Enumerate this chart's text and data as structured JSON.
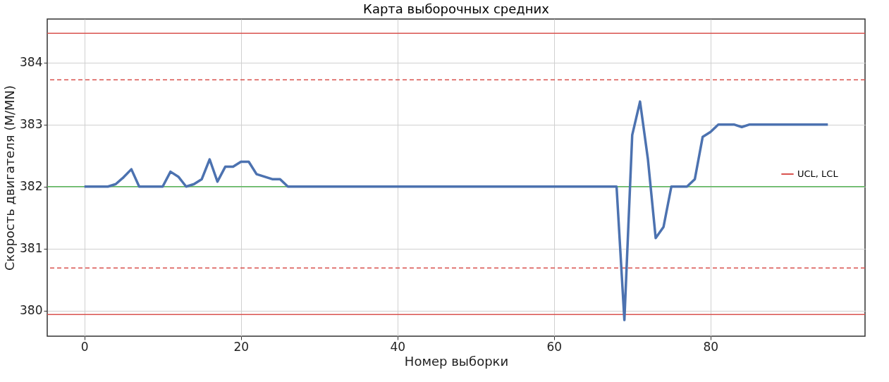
{
  "chart_data": {
    "type": "line",
    "title": "Карта выборочных средних",
    "xlabel": "Номер выборки",
    "ylabel": "Скорость двигателя (M/MN)",
    "x": [
      0,
      1,
      2,
      3,
      4,
      5,
      6,
      7,
      8,
      9,
      10,
      11,
      12,
      13,
      14,
      15,
      16,
      17,
      18,
      19,
      20,
      21,
      22,
      23,
      24,
      25,
      26,
      27,
      28,
      29,
      30,
      31,
      32,
      33,
      34,
      35,
      36,
      37,
      38,
      39,
      40,
      41,
      42,
      43,
      44,
      45,
      46,
      47,
      48,
      49,
      50,
      51,
      52,
      53,
      54,
      55,
      56,
      57,
      58,
      59,
      60,
      61,
      62,
      63,
      64,
      65,
      66,
      67,
      68,
      69,
      70,
      71,
      72,
      73,
      74,
      75,
      76,
      77,
      78,
      79,
      80,
      81,
      82,
      83,
      84,
      85,
      86,
      87,
      88,
      89,
      90,
      91,
      92,
      93,
      94,
      95
    ],
    "series": [
      {
        "color": "#4c72b0",
        "values": [
          382,
          382,
          382,
          382,
          382.04,
          382.15,
          382.28,
          382,
          382,
          382,
          382,
          382.24,
          382.16,
          382,
          382.04,
          382.12,
          382.44,
          382.08,
          382.32,
          382.32,
          382.4,
          382.4,
          382.2,
          382.16,
          382.12,
          382.12,
          382,
          382,
          382,
          382,
          382,
          382,
          382,
          382,
          382,
          382,
          382,
          382,
          382,
          382,
          382,
          382,
          382,
          382,
          382,
          382,
          382,
          382,
          382,
          382,
          382,
          382,
          382,
          382,
          382,
          382,
          382,
          382,
          382,
          382,
          382,
          382,
          382,
          382,
          382,
          382,
          382,
          382,
          382,
          379.85,
          382.83,
          383.37,
          382.45,
          381.17,
          381.35,
          382,
          382,
          382,
          382.12,
          382.8,
          382.88,
          383,
          383,
          383,
          382.96,
          383,
          383,
          383,
          383,
          383,
          383,
          383,
          383,
          383,
          383,
          383
        ]
      }
    ],
    "ref_lines": [
      {
        "axis": "y",
        "value": 384.47,
        "label": "UCL, LCL",
        "color": "#d9534f",
        "line_style": "solid"
      },
      {
        "axis": "y",
        "value": 383.72,
        "color": "#d9534f",
        "line_style": "dashed"
      },
      {
        "axis": "y",
        "value": 382,
        "color": "#5cb85c",
        "line_style": "solid"
      },
      {
        "axis": "y",
        "value": 380.69,
        "color": "#d9534f",
        "line_style": "dashed"
      },
      {
        "axis": "y",
        "value": 379.94,
        "color": "#d9534f",
        "line_style": "solid"
      }
    ],
    "xlim": [
      -4.75,
      99.75
    ],
    "xticks": [
      0,
      20,
      40,
      60,
      80
    ],
    "ylim": [
      379.59,
      384.7
    ],
    "yticks": [
      380,
      381,
      382,
      383,
      384
    ],
    "grid": true,
    "legend": "right",
    "marker": "none",
    "line_style": "solid"
  }
}
